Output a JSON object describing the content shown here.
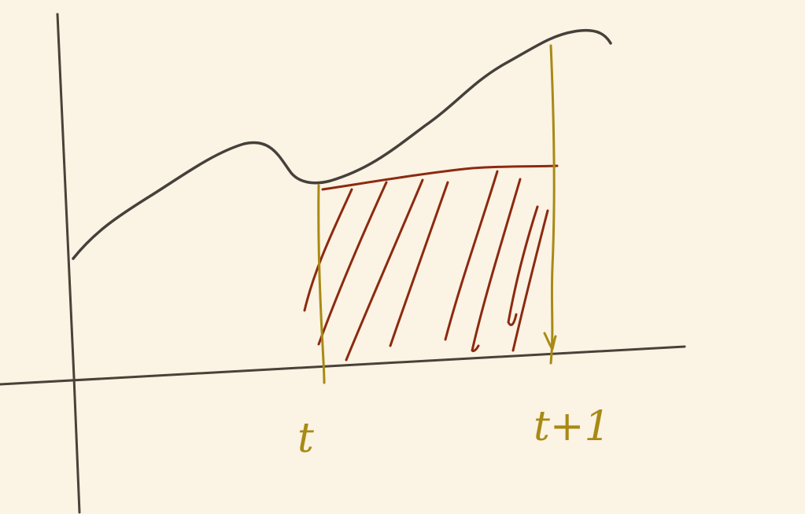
{
  "colors": {
    "background": "#fbf3e4",
    "axes": "#4a4238",
    "curve": "#45403a",
    "shading": "#8c2a10",
    "guides": "#a88a14"
  },
  "labels": {
    "left": "t",
    "right": "t+1"
  }
}
